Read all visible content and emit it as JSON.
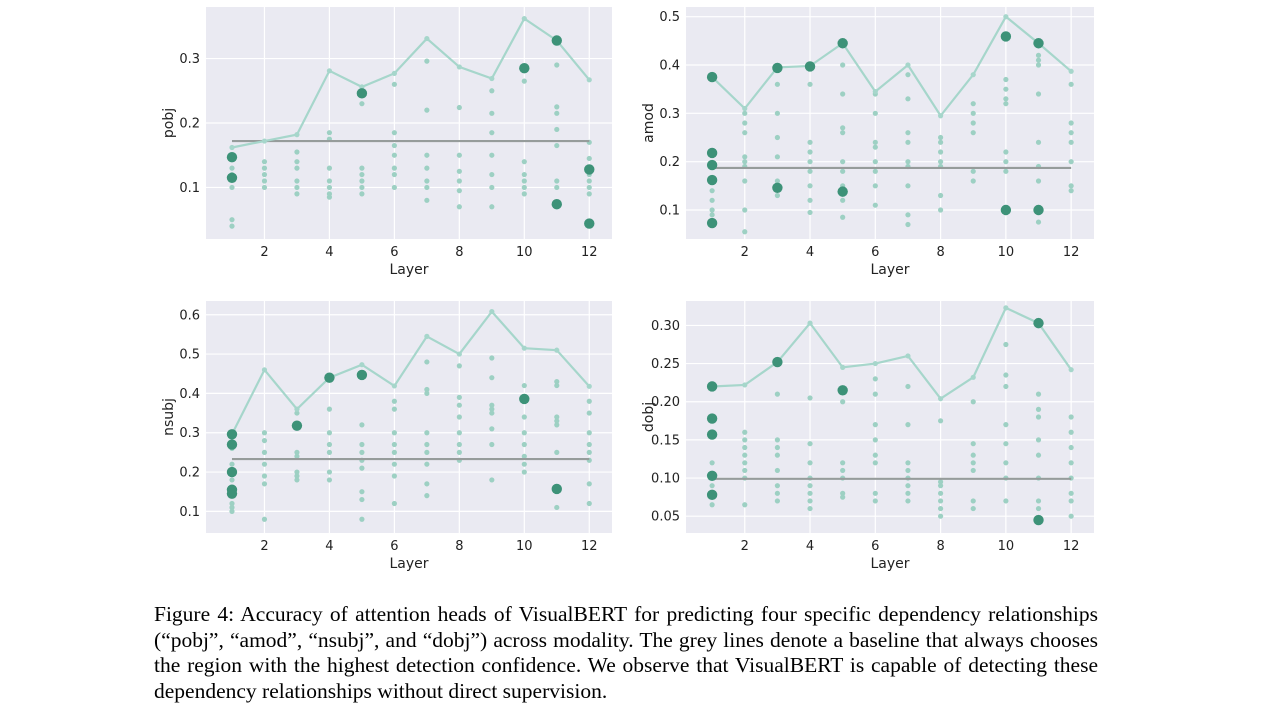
{
  "colors": {
    "plot_bg": "#eaeaf2",
    "grid": "#ffffff",
    "dot": "#9dd0c3",
    "highlight": "#3d9278",
    "maxline": "#a6d6cb",
    "baseline": "#969c9b"
  },
  "chart_data": [
    {
      "type": "scatter",
      "xlabel": "Layer",
      "ylabel": "pobj",
      "xlim": [
        0.2,
        12.7
      ],
      "ylim": [
        0.02,
        0.38
      ],
      "xticks": [
        2,
        4,
        6,
        8,
        10,
        12
      ],
      "yticks": [
        0.1,
        0.2,
        0.3
      ],
      "ytick_labels": [
        "0.1",
        "0.2",
        "0.3"
      ],
      "max_line": [
        0.162,
        0.172,
        0.182,
        0.281,
        0.256,
        0.277,
        0.331,
        0.287,
        0.269,
        0.362,
        0.328,
        0.267
      ],
      "baseline": 0.172,
      "highlighted": [
        [
          1,
          0.147
        ],
        [
          1,
          0.115
        ],
        [
          5,
          0.246
        ],
        [
          10,
          0.285
        ],
        [
          11,
          0.328
        ],
        [
          11,
          0.074
        ],
        [
          12,
          0.128
        ],
        [
          12,
          0.044
        ]
      ],
      "heads": [
        [
          0.13,
          0.12,
          0.1,
          0.05,
          0.04
        ],
        [
          0.14,
          0.13,
          0.12,
          0.11,
          0.1
        ],
        [
          0.155,
          0.14,
          0.13,
          0.11,
          0.1,
          0.09
        ],
        [
          0.185,
          0.175,
          0.13,
          0.11,
          0.1,
          0.09,
          0.085
        ],
        [
          0.23,
          0.13,
          0.12,
          0.11,
          0.1,
          0.09
        ],
        [
          0.26,
          0.185,
          0.165,
          0.15,
          0.13,
          0.12,
          0.1
        ],
        [
          0.296,
          0.22,
          0.15,
          0.13,
          0.11,
          0.1,
          0.08
        ],
        [
          0.224,
          0.15,
          0.125,
          0.11,
          0.095,
          0.07
        ],
        [
          0.25,
          0.215,
          0.185,
          0.15,
          0.12,
          0.1,
          0.07
        ],
        [
          0.265,
          0.14,
          0.12,
          0.11,
          0.1,
          0.09
        ],
        [
          0.29,
          0.225,
          0.215,
          0.19,
          0.165,
          0.11,
          0.1,
          0.07
        ],
        [
          0.17,
          0.145,
          0.12,
          0.11,
          0.1,
          0.09
        ]
      ]
    },
    {
      "type": "scatter",
      "xlabel": "Layer",
      "ylabel": "amod",
      "xlim": [
        0.2,
        12.7
      ],
      "ylim": [
        0.04,
        0.52
      ],
      "xticks": [
        2,
        4,
        6,
        8,
        10,
        12
      ],
      "yticks": [
        0.1,
        0.2,
        0.3,
        0.4,
        0.5
      ],
      "ytick_labels": [
        "0.1",
        "0.2",
        "0.3",
        "0.4",
        "0.5"
      ],
      "max_line": [
        0.375,
        0.31,
        0.395,
        0.398,
        0.445,
        0.345,
        0.4,
        0.295,
        0.38,
        0.5,
        0.445,
        0.387
      ],
      "baseline": 0.187,
      "highlighted": [
        [
          1,
          0.375
        ],
        [
          1,
          0.218
        ],
        [
          1,
          0.193
        ],
        [
          1,
          0.162
        ],
        [
          1,
          0.073
        ],
        [
          3,
          0.394
        ],
        [
          3,
          0.146
        ],
        [
          4,
          0.397
        ],
        [
          5,
          0.445
        ],
        [
          5,
          0.138
        ],
        [
          10,
          0.459
        ],
        [
          10,
          0.1
        ],
        [
          11,
          0.445
        ],
        [
          11,
          0.1
        ]
      ],
      "heads": [
        [
          0.14,
          0.12,
          0.1,
          0.09
        ],
        [
          0.3,
          0.28,
          0.26,
          0.21,
          0.2,
          0.19,
          0.16,
          0.1,
          0.055
        ],
        [
          0.36,
          0.3,
          0.25,
          0.21,
          0.16,
          0.13
        ],
        [
          0.36,
          0.24,
          0.22,
          0.2,
          0.18,
          0.15,
          0.12,
          0.095
        ],
        [
          0.4,
          0.34,
          0.27,
          0.26,
          0.2,
          0.18,
          0.15,
          0.12,
          0.085
        ],
        [
          0.34,
          0.3,
          0.24,
          0.23,
          0.2,
          0.18,
          0.15,
          0.11
        ],
        [
          0.38,
          0.33,
          0.26,
          0.24,
          0.2,
          0.19,
          0.15,
          0.09,
          0.07
        ],
        [
          0.25,
          0.24,
          0.22,
          0.2,
          0.19,
          0.13,
          0.1
        ],
        [
          0.32,
          0.3,
          0.28,
          0.26,
          0.18,
          0.16
        ],
        [
          0.37,
          0.35,
          0.33,
          0.32,
          0.22,
          0.2,
          0.18
        ],
        [
          0.42,
          0.41,
          0.4,
          0.34,
          0.24,
          0.19,
          0.16,
          0.075
        ],
        [
          0.36,
          0.28,
          0.26,
          0.24,
          0.2,
          0.15,
          0.14
        ]
      ]
    },
    {
      "type": "scatter",
      "xlabel": "Layer",
      "ylabel": "nsubj",
      "xlim": [
        0.2,
        12.7
      ],
      "ylim": [
        0.045,
        0.635
      ],
      "xticks": [
        2,
        4,
        6,
        8,
        10,
        12
      ],
      "yticks": [
        0.1,
        0.2,
        0.3,
        0.4,
        0.5,
        0.6
      ],
      "ytick_labels": [
        "0.1",
        "0.2",
        "0.3",
        "0.4",
        "0.5",
        "0.6"
      ],
      "max_line": [
        0.296,
        0.46,
        0.36,
        0.44,
        0.473,
        0.419,
        0.545,
        0.5,
        0.608,
        0.515,
        0.51,
        0.418
      ],
      "baseline": 0.233,
      "highlighted": [
        [
          1,
          0.296
        ],
        [
          1,
          0.27
        ],
        [
          1,
          0.2
        ],
        [
          1,
          0.155
        ],
        [
          1,
          0.145
        ],
        [
          3,
          0.318
        ],
        [
          4,
          0.44
        ],
        [
          5,
          0.447
        ],
        [
          10,
          0.386
        ],
        [
          11,
          0.157
        ]
      ],
      "heads": [
        [
          0.26,
          0.22,
          0.18,
          0.12,
          0.11,
          0.1
        ],
        [
          0.3,
          0.28,
          0.25,
          0.22,
          0.19,
          0.17,
          0.08
        ],
        [
          0.35,
          0.25,
          0.24,
          0.2,
          0.19,
          0.18
        ],
        [
          0.36,
          0.3,
          0.27,
          0.25,
          0.2,
          0.18
        ],
        [
          0.32,
          0.27,
          0.25,
          0.23,
          0.21,
          0.15,
          0.13,
          0.08
        ],
        [
          0.38,
          0.36,
          0.3,
          0.27,
          0.25,
          0.22,
          0.19,
          0.12
        ],
        [
          0.48,
          0.41,
          0.4,
          0.3,
          0.27,
          0.25,
          0.22,
          0.17,
          0.14
        ],
        [
          0.47,
          0.39,
          0.37,
          0.34,
          0.3,
          0.27,
          0.25,
          0.23
        ],
        [
          0.49,
          0.44,
          0.37,
          0.36,
          0.35,
          0.31,
          0.27,
          0.18
        ],
        [
          0.42,
          0.34,
          0.3,
          0.27,
          0.24,
          0.22,
          0.2
        ],
        [
          0.43,
          0.42,
          0.34,
          0.33,
          0.32,
          0.25,
          0.11
        ],
        [
          0.38,
          0.35,
          0.3,
          0.27,
          0.25,
          0.23,
          0.17,
          0.12
        ]
      ]
    },
    {
      "type": "scatter",
      "xlabel": "Layer",
      "ylabel": "dobj",
      "xlim": [
        0.2,
        12.7
      ],
      "ylim": [
        0.028,
        0.332
      ],
      "xticks": [
        2,
        4,
        6,
        8,
        10,
        12
      ],
      "yticks": [
        0.05,
        0.1,
        0.15,
        0.2,
        0.25,
        0.3
      ],
      "ytick_labels": [
        "0.05",
        "0.10",
        "0.15",
        "0.20",
        "0.25",
        "0.30"
      ],
      "max_line": [
        0.22,
        0.222,
        0.252,
        0.303,
        0.245,
        0.25,
        0.26,
        0.204,
        0.232,
        0.323,
        0.303,
        0.242
      ],
      "baseline": 0.099,
      "highlighted": [
        [
          1,
          0.22
        ],
        [
          1,
          0.178
        ],
        [
          1,
          0.157
        ],
        [
          1,
          0.103
        ],
        [
          1,
          0.078
        ],
        [
          3,
          0.252
        ],
        [
          5,
          0.215
        ],
        [
          11,
          0.303
        ],
        [
          11,
          0.045
        ]
      ],
      "heads": [
        [
          0.16,
          0.12,
          0.1,
          0.09,
          0.065
        ],
        [
          0.16,
          0.15,
          0.14,
          0.13,
          0.12,
          0.11,
          0.1,
          0.065
        ],
        [
          0.21,
          0.15,
          0.14,
          0.13,
          0.11,
          0.09,
          0.08,
          0.07
        ],
        [
          0.205,
          0.145,
          0.12,
          0.1,
          0.09,
          0.08,
          0.07,
          0.06
        ],
        [
          0.2,
          0.12,
          0.11,
          0.1,
          0.08,
          0.075
        ],
        [
          0.23,
          0.21,
          0.17,
          0.15,
          0.13,
          0.12,
          0.08,
          0.07
        ],
        [
          0.22,
          0.17,
          0.12,
          0.11,
          0.1,
          0.09,
          0.08,
          0.07
        ],
        [
          0.175,
          0.095,
          0.09,
          0.08,
          0.07,
          0.06,
          0.05
        ],
        [
          0.2,
          0.145,
          0.13,
          0.12,
          0.11,
          0.07,
          0.06
        ],
        [
          0.275,
          0.235,
          0.22,
          0.17,
          0.145,
          0.12,
          0.1,
          0.07
        ],
        [
          0.21,
          0.19,
          0.18,
          0.15,
          0.13,
          0.1,
          0.07,
          0.06
        ],
        [
          0.18,
          0.16,
          0.14,
          0.12,
          0.1,
          0.08,
          0.07,
          0.05
        ]
      ]
    }
  ],
  "caption": "Figure 4: Accuracy of attention heads of VisualBERT for predicting four specific dependency relationships (“pobj”, “amod”, “nsubj”, and “dobj”) across modality. The grey lines denote a baseline that always chooses the region with the highest detection confidence. We observe that VisualBERT is capable of detecting these dependency relationships without direct supervision."
}
